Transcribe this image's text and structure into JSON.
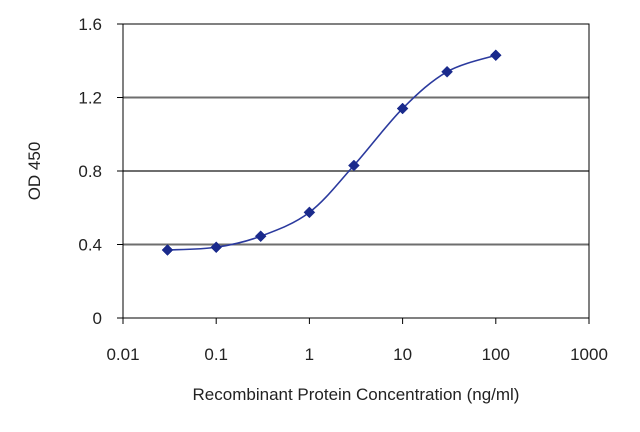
{
  "chart_data": {
    "type": "line",
    "title": "",
    "xlabel": "Recombinant Protein Concentration (ng/ml)",
    "ylabel": "OD 450",
    "x_scale": "log",
    "xlim": [
      0.01,
      1000
    ],
    "ylim": [
      0,
      1.6
    ],
    "x_ticks": [
      "0.01",
      "0.1",
      "1",
      "10",
      "100",
      "1000"
    ],
    "x_tick_values": [
      0.01,
      0.1,
      1,
      10,
      100,
      1000
    ],
    "y_ticks": [
      "0",
      "0.4",
      "0.8",
      "1.2",
      "1.6"
    ],
    "y_tick_values": [
      0,
      0.4,
      0.8,
      1.2,
      1.6
    ],
    "grid": "horizontal",
    "legend": "none",
    "series": [
      {
        "x": [
          0.03,
          0.1,
          0.3,
          1,
          3,
          10,
          30,
          100
        ],
        "y": [
          0.37,
          0.385,
          0.445,
          0.575,
          0.83,
          1.14,
          1.34,
          1.43
        ],
        "color": "#2b3a9e",
        "marker": "diamond"
      }
    ]
  }
}
